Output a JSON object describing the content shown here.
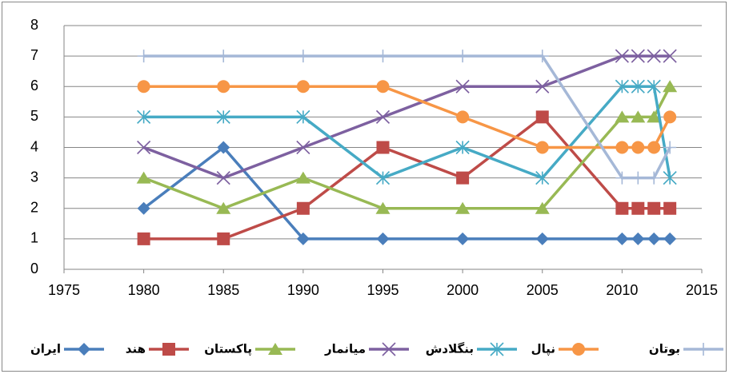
{
  "chart_data": {
    "type": "line",
    "x": [
      1980,
      1985,
      1990,
      1995,
      2000,
      2005,
      2010,
      2011,
      2012,
      2013
    ],
    "xlim": [
      1975,
      2015
    ],
    "xticks": [
      1975,
      1980,
      1985,
      1990,
      1995,
      2000,
      2005,
      2010,
      2015
    ],
    "ylim": [
      0,
      8
    ],
    "yticks": [
      0,
      1,
      2,
      3,
      4,
      5,
      6,
      7,
      8
    ],
    "grid": true,
    "legend": "bottom",
    "series": [
      {
        "name": "ایران",
        "color": "#4a7ebb",
        "marker": "diamond",
        "values": [
          2,
          4,
          1,
          1,
          1,
          1,
          1,
          1,
          1,
          1
        ]
      },
      {
        "name": "هند",
        "color": "#be4b48",
        "marker": "square",
        "values": [
          1,
          1,
          2,
          4,
          3,
          5,
          2,
          2,
          2,
          2
        ]
      },
      {
        "name": "پاکستان",
        "color": "#98b954",
        "marker": "triangle",
        "values": [
          3,
          2,
          3,
          2,
          2,
          2,
          5,
          5,
          5,
          6
        ]
      },
      {
        "name": "میانمار",
        "color": "#7d60a0",
        "marker": "x",
        "values": [
          4,
          3,
          4,
          5,
          6,
          6,
          7,
          7,
          7,
          7
        ]
      },
      {
        "name": "بنگلادش",
        "color": "#46aac5",
        "marker": "asterisk",
        "values": [
          5,
          5,
          5,
          3,
          4,
          3,
          6,
          6,
          6,
          3
        ]
      },
      {
        "name": "نپال",
        "color": "#f79646",
        "marker": "circle",
        "values": [
          6,
          6,
          6,
          6,
          5,
          4,
          4,
          4,
          4,
          5
        ]
      },
      {
        "name": "بوتان",
        "color": "#a5b8d7",
        "marker": "plus",
        "values": [
          7,
          7,
          7,
          7,
          7,
          7,
          3,
          3,
          3,
          4
        ]
      }
    ]
  }
}
